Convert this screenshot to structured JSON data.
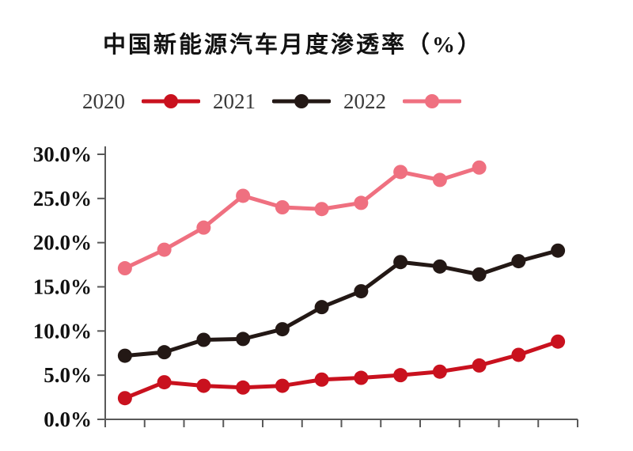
{
  "chart_data": {
    "type": "line",
    "title": "中国新能源汽车月度渗透率（%）",
    "xlabel": "",
    "ylabel": "",
    "x": [
      1,
      2,
      3,
      4,
      5,
      6,
      7,
      8,
      9,
      10,
      11,
      12
    ],
    "x_tick_count": 13,
    "x_axis_labels_visible": false,
    "ylim": [
      0,
      30
    ],
    "ytick_step": 5,
    "ytick_labels": [
      "0.0%",
      "5.0%",
      "10.0%",
      "15.0%",
      "20.0%",
      "25.0%",
      "30.0%"
    ],
    "grid": false,
    "legend_position": "top-left",
    "axis_color": "#595959",
    "background": "#ffffff",
    "series": [
      {
        "name": "2020",
        "color": "#c9111e",
        "values": [
          2.4,
          4.2,
          3.8,
          3.6,
          3.8,
          4.5,
          4.7,
          5.0,
          5.4,
          6.1,
          7.3,
          8.8
        ]
      },
      {
        "name": "2021",
        "color": "#231815",
        "values": [
          7.2,
          7.6,
          9.0,
          9.1,
          10.2,
          12.7,
          14.5,
          17.8,
          17.3,
          16.4,
          17.9,
          19.1
        ]
      },
      {
        "name": "2022",
        "color": "#ef7080",
        "values": [
          17.1,
          19.2,
          21.7,
          25.3,
          24.0,
          23.8,
          24.5,
          28.0,
          27.1,
          28.5
        ]
      }
    ]
  }
}
